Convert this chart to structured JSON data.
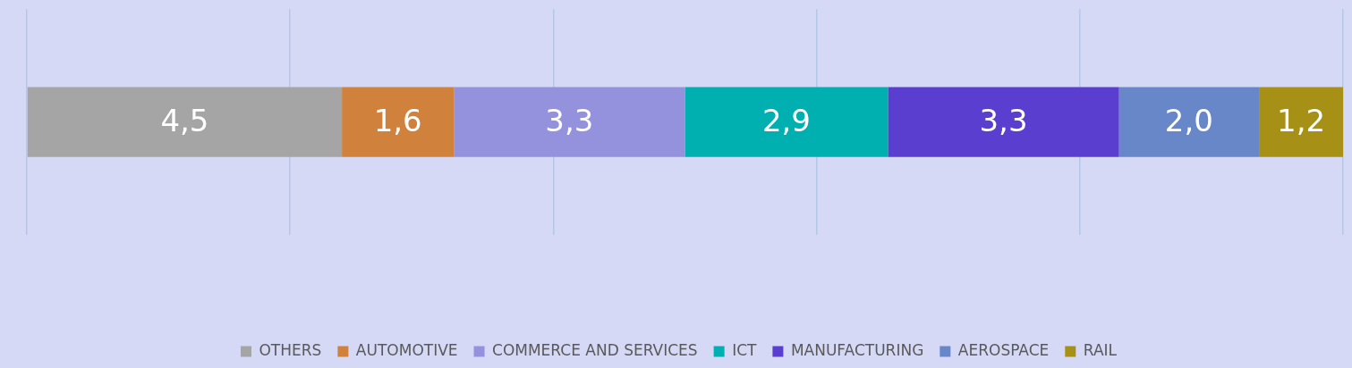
{
  "chart_data": {
    "type": "bar",
    "orientation": "horizontal",
    "stacked": true,
    "categories": [
      null
    ],
    "xlim": [
      0,
      18.8
    ],
    "xticks": [
      {
        "value": 0,
        "label": null
      },
      {
        "value": 3.76,
        "label": null
      },
      {
        "value": 7.52,
        "label": null
      },
      {
        "value": 11.28,
        "label": null
      },
      {
        "value": 15.04,
        "label": null
      },
      {
        "value": 18.8,
        "label": null
      }
    ],
    "grid": "x",
    "legend": "bottom",
    "series": [
      {
        "name": "OTHERS",
        "color": "#a5a5a5",
        "values": [
          4.5
        ],
        "value_labels": [
          "4,5"
        ]
      },
      {
        "name": "AUTOMOTIVE",
        "color": "#d0813b",
        "values": [
          1.6
        ],
        "value_labels": [
          "1,6"
        ]
      },
      {
        "name": "COMMERCE AND SERVICES",
        "color": "#9592dd",
        "values": [
          3.3
        ],
        "value_labels": [
          "3,3"
        ]
      },
      {
        "name": "ICT",
        "color": "#00b0b0",
        "values": [
          2.9
        ],
        "value_labels": [
          "2,9"
        ]
      },
      {
        "name": "MANUFACTURING",
        "color": "#5a3ecf",
        "values": [
          3.3
        ],
        "value_labels": [
          "3,3"
        ]
      },
      {
        "name": "AEROSPACE",
        "color": "#6787c8",
        "values": [
          2.0
        ],
        "value_labels": [
          "2,0"
        ]
      },
      {
        "name": "RAIL",
        "color": "#a79016",
        "values": [
          1.2
        ],
        "value_labels": [
          "1,2"
        ]
      }
    ]
  }
}
